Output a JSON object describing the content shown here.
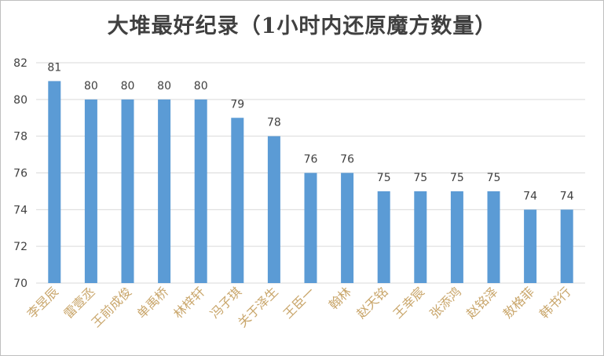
{
  "chart_data": {
    "type": "bar",
    "title": "大堆最好纪录（1小时内还原魔方数量）",
    "categories": [
      "李昱辰",
      "雷壹丞",
      "王前成俊",
      "单禹桥",
      "林梓轩",
      "冯子琪",
      "关于泽生",
      "王臣一",
      "翰林",
      "赵天铭",
      "王幸宸",
      "张添鸿",
      "赵铭泽",
      "敖格菲",
      "韩书行"
    ],
    "values": [
      81,
      80,
      80,
      80,
      80,
      79,
      78,
      76,
      76,
      75,
      75,
      75,
      75,
      74,
      74
    ],
    "ylim": [
      70,
      82
    ],
    "yticks": [
      70,
      72,
      74,
      76,
      78,
      80,
      82
    ],
    "xlabel": "",
    "ylabel": "",
    "grid": true,
    "data_labels": true,
    "bar_color": "#5b9bd5",
    "category_label_color": "#c9a66b",
    "text_color": "#404040",
    "grid_color": "#d9d9d9"
  }
}
